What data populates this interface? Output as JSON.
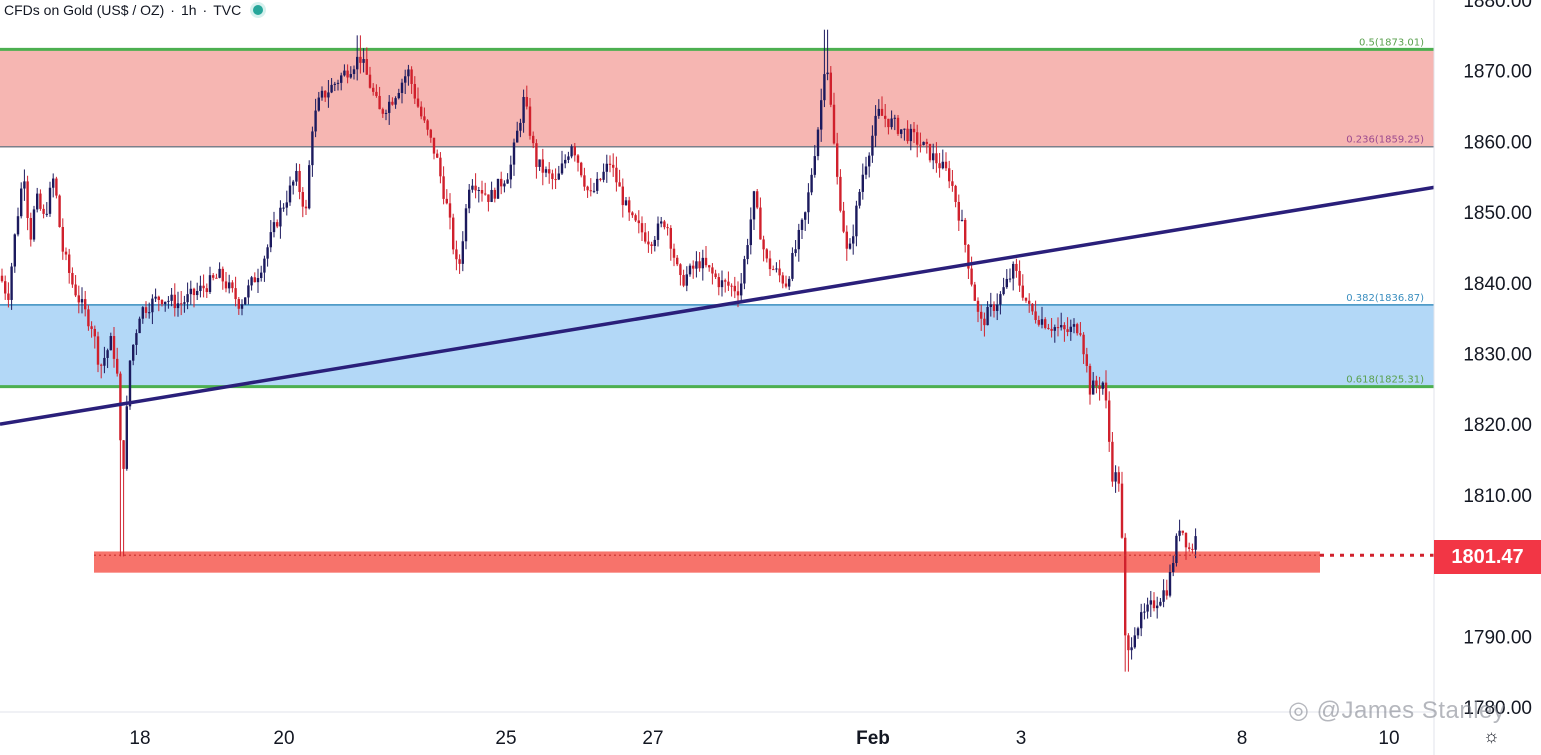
{
  "header": {
    "symbol": "CFDs on Gold (US$ / OZ)",
    "interval": "1h",
    "source": "TVC",
    "separator": "·",
    "status_color": "#26a69a"
  },
  "watermark": "◎ @James Stanley",
  "last_price": "1801.47",
  "colors": {
    "up": "#1c1a5e",
    "down": "#d0202c",
    "resistance_zone": "#f6b6b2",
    "support_zone": "#b3d8f7",
    "fib_green": "#4caf50",
    "fib_blue": "#3a8ebf",
    "trendline": "#2a1f7a",
    "level_zone": "#f7736b"
  },
  "chart_data": {
    "type": "candlestick",
    "title": "CFDs on Gold (US$ / OZ) · 1h · TVC",
    "ylim": [
      1778,
      1880
    ],
    "y_ticks": [
      "1880.00",
      "1870.00",
      "1860.00",
      "1850.00",
      "1840.00",
      "1830.00",
      "1820.00",
      "1810.00",
      "1790.00",
      "1780.00"
    ],
    "x_ticks": [
      "18",
      "20",
      "25",
      "27",
      "Feb",
      "3",
      "8",
      "10"
    ],
    "fib_levels": [
      {
        "label": "0.5(1873.01)",
        "value": 1873.01
      },
      {
        "label": "0.236(1859.25)",
        "value": 1859.25
      },
      {
        "label": "0.382(1836.87)",
        "value": 1836.87
      },
      {
        "label": "0.618(1825.31)",
        "value": 1825.31
      }
    ],
    "zones": [
      {
        "name": "resistance",
        "from": 1859.25,
        "to": 1873.01
      },
      {
        "name": "support",
        "from": 1825.31,
        "to": 1836.87
      },
      {
        "name": "level",
        "from": 1799.0,
        "to": 1802.0
      }
    ],
    "trendline": {
      "start_value": 1820.0,
      "end_value": 1853.5
    },
    "last_price": 1801.47,
    "waypoints": [
      [
        0,
        1841
      ],
      [
        8,
        1838
      ],
      [
        16,
        1848
      ],
      [
        24,
        1856
      ],
      [
        30,
        1846
      ],
      [
        36,
        1852
      ],
      [
        44,
        1849
      ],
      [
        54,
        1855
      ],
      [
        62,
        1845
      ],
      [
        72,
        1840
      ],
      [
        84,
        1836
      ],
      [
        92,
        1834
      ],
      [
        100,
        1828
      ],
      [
        112,
        1832
      ],
      [
        118,
        1826
      ],
      [
        122,
        1811
      ],
      [
        130,
        1829
      ],
      [
        140,
        1836
      ],
      [
        160,
        1838
      ],
      [
        180,
        1837
      ],
      [
        200,
        1839
      ],
      [
        220,
        1841
      ],
      [
        240,
        1837
      ],
      [
        260,
        1842
      ],
      [
        280,
        1850
      ],
      [
        296,
        1855
      ],
      [
        306,
        1850
      ],
      [
        312,
        1862
      ],
      [
        320,
        1866
      ],
      [
        340,
        1869
      ],
      [
        360,
        1872
      ],
      [
        380,
        1864
      ],
      [
        392,
        1866
      ],
      [
        408,
        1870
      ],
      [
        420,
        1864
      ],
      [
        436,
        1858
      ],
      [
        448,
        1850
      ],
      [
        458,
        1841
      ],
      [
        470,
        1855
      ],
      [
        490,
        1852
      ],
      [
        510,
        1856
      ],
      [
        524,
        1866
      ],
      [
        536,
        1857
      ],
      [
        556,
        1854
      ],
      [
        572,
        1860
      ],
      [
        590,
        1852
      ],
      [
        610,
        1857
      ],
      [
        630,
        1849
      ],
      [
        650,
        1846
      ],
      [
        666,
        1849
      ],
      [
        680,
        1840
      ],
      [
        700,
        1843
      ],
      [
        720,
        1840
      ],
      [
        740,
        1839
      ],
      [
        754,
        1852
      ],
      [
        766,
        1843
      ],
      [
        786,
        1840
      ],
      [
        806,
        1850
      ],
      [
        820,
        1864
      ],
      [
        826,
        1873
      ],
      [
        836,
        1856
      ],
      [
        848,
        1843
      ],
      [
        862,
        1855
      ],
      [
        878,
        1864
      ],
      [
        898,
        1862
      ],
      [
        918,
        1860
      ],
      [
        938,
        1857
      ],
      [
        950,
        1855
      ],
      [
        962,
        1848
      ],
      [
        972,
        1840
      ],
      [
        980,
        1834
      ],
      [
        1000,
        1838
      ],
      [
        1014,
        1842
      ],
      [
        1030,
        1836
      ],
      [
        1050,
        1834
      ],
      [
        1066,
        1833
      ],
      [
        1080,
        1834
      ],
      [
        1090,
        1825
      ],
      [
        1104,
        1826
      ],
      [
        1112,
        1813
      ],
      [
        1120,
        1812
      ],
      [
        1126,
        1786
      ],
      [
        1134,
        1791
      ],
      [
        1150,
        1794
      ],
      [
        1168,
        1797
      ],
      [
        1180,
        1806
      ],
      [
        1190,
        1802
      ],
      [
        1196,
        1804
      ]
    ],
    "extremes": [
      {
        "x": 123,
        "low": 1801.3
      },
      {
        "x": 360,
        "high": 1875
      },
      {
        "x": 826,
        "high": 1875.8
      },
      {
        "x": 1126,
        "low": 1785
      }
    ]
  }
}
